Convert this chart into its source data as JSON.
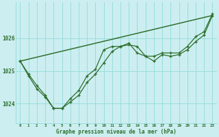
{
  "title": "Graphe pression niveau de la mer (hPa)",
  "bg_color": "#cceef0",
  "grid_color": "#99dddd",
  "line_color": "#2d6e2d",
  "x_ticks": [
    0,
    1,
    2,
    3,
    4,
    5,
    6,
    7,
    8,
    9,
    10,
    11,
    12,
    13,
    14,
    15,
    16,
    17,
    18,
    19,
    20,
    21,
    22,
    23
  ],
  "y_ticks": [
    1024,
    1025,
    1026
  ],
  "ylim": [
    1023.4,
    1027.1
  ],
  "xlim": [
    -0.5,
    23.5
  ],
  "series1_x": [
    0,
    1,
    2,
    3,
    4,
    5,
    6,
    7,
    8,
    9,
    10,
    11,
    12,
    13,
    14,
    15,
    16,
    17,
    18,
    19,
    20,
    21,
    22,
    23
  ],
  "series1_y": [
    1025.3,
    1024.9,
    1024.55,
    1024.25,
    1023.85,
    1023.85,
    1024.15,
    1024.4,
    1024.85,
    1025.05,
    1025.65,
    1025.75,
    1025.75,
    1025.85,
    1025.55,
    1025.45,
    1025.45,
    1025.55,
    1025.55,
    1025.55,
    1025.75,
    1026.05,
    1026.2,
    1026.75
  ],
  "series2_x": [
    0,
    1,
    2,
    3,
    4,
    5,
    6,
    7,
    8,
    9,
    10,
    11,
    12,
    13,
    14,
    15,
    16,
    17,
    18,
    19,
    20,
    21,
    22,
    23
  ],
  "series2_y": [
    1025.3,
    1024.85,
    1024.45,
    1024.2,
    1023.85,
    1023.85,
    1024.05,
    1024.25,
    1024.65,
    1024.9,
    1025.25,
    1025.6,
    1025.75,
    1025.8,
    1025.75,
    1025.45,
    1025.3,
    1025.5,
    1025.45,
    1025.5,
    1025.65,
    1025.9,
    1026.1,
    1026.7
  ],
  "series3_x": [
    0,
    23
  ],
  "series3_y": [
    1025.3,
    1026.7
  ],
  "figsize": [
    3.2,
    2.0
  ],
  "dpi": 100
}
